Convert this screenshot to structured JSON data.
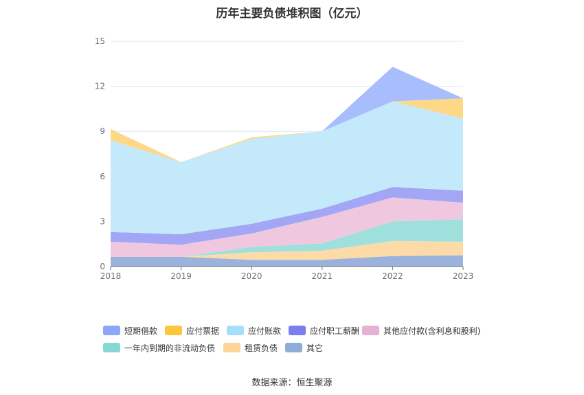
{
  "chart_data": {
    "type": "area",
    "stacked": true,
    "title": "历年主要负债堆积图（亿元）",
    "xlabel": "",
    "ylabel": "",
    "x": [
      "2018",
      "2019",
      "2020",
      "2021",
      "2022",
      "2023"
    ],
    "ylim": [
      0,
      15
    ],
    "yticks": [
      "0",
      "3",
      "6",
      "9",
      "12",
      "15"
    ],
    "grid": true,
    "legend_position": "bottom",
    "series": [
      {
        "name": "其它",
        "color": "#9ab2dc",
        "values": [
          0.65,
          0.65,
          0.45,
          0.45,
          0.7,
          0.75
        ]
      },
      {
        "name": "租赁负债",
        "color": "#fddba8",
        "values": [
          0,
          0,
          0.5,
          0.6,
          1.0,
          0.9
        ]
      },
      {
        "name": "一年内到期的非流动负债",
        "color": "#9fe0dc",
        "values": [
          0,
          0,
          0.35,
          0.5,
          1.3,
          1.5
        ]
      },
      {
        "name": "其他应付款(含利息和股利)",
        "color": "#efc8e0",
        "values": [
          1.0,
          0.8,
          0.9,
          1.75,
          1.6,
          1.1
        ]
      },
      {
        "name": "应付职工薪酬",
        "color": "#a3a6f5",
        "values": [
          0.65,
          0.7,
          0.65,
          0.55,
          0.7,
          0.8
        ]
      },
      {
        "name": "应付账款",
        "color": "#c4e9fb",
        "values": [
          6.1,
          4.8,
          5.65,
          5.15,
          5.7,
          4.8
        ]
      },
      {
        "name": "应付票据",
        "color": "#fdd886",
        "values": [
          0.75,
          0,
          0.1,
          0,
          0,
          1.35
        ]
      },
      {
        "name": "短期借款",
        "color": "#a8bdfb",
        "values": [
          0,
          0,
          0,
          0,
          2.3,
          0
        ]
      }
    ],
    "legend": [
      {
        "name": "短期借款",
        "color": "#8aa7fa"
      },
      {
        "name": "应付票据",
        "color": "#fcc63d"
      },
      {
        "name": "应付账款",
        "color": "#a6dff9"
      },
      {
        "name": "应付职工薪酬",
        "color": "#7a7ef1"
      },
      {
        "name": "其他应付款(含利息和股利)",
        "color": "#e6b1d6"
      },
      {
        "name": "一年内到期的非流动负债",
        "color": "#85d8d3"
      },
      {
        "name": "租赁负债",
        "color": "#fdd597"
      },
      {
        "name": "其它",
        "color": "#90acd9"
      }
    ],
    "source": "数据来源：恒生聚源"
  }
}
